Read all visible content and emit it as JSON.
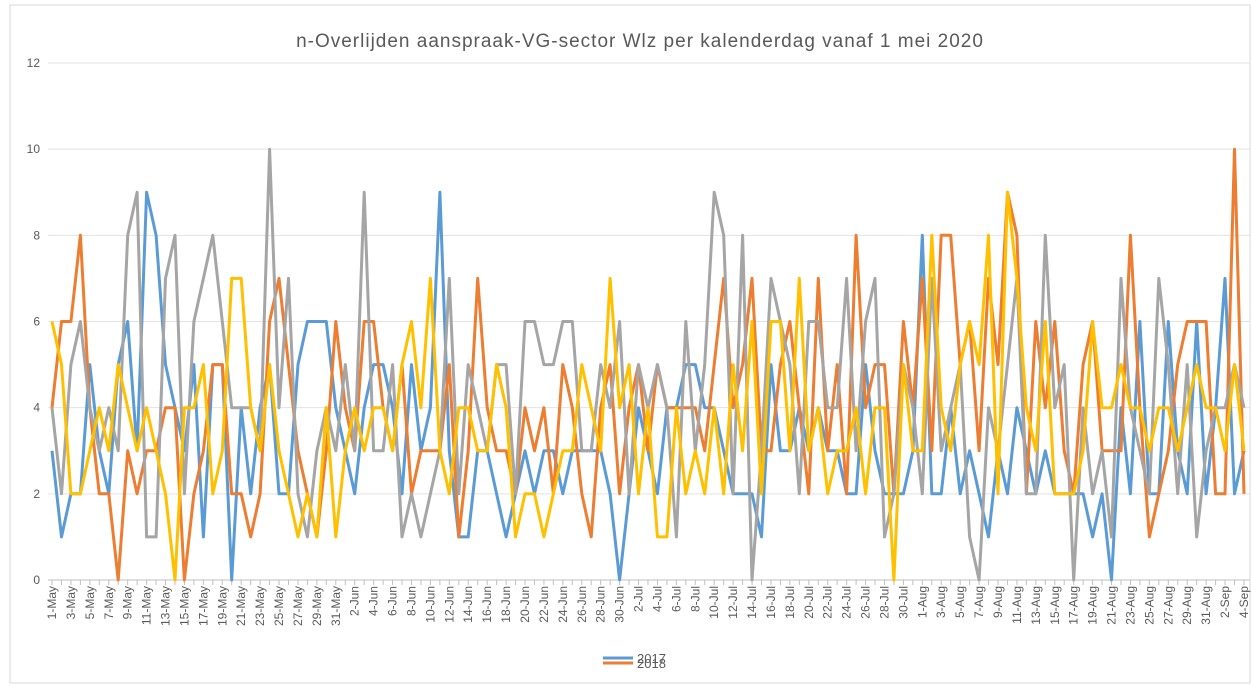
{
  "chart_data": {
    "type": "line",
    "title": "n-Overlijden aanspraak-VG-sector Wlz per kalenderdag vanaf 1 mei 2020",
    "categories": [
      "1-May",
      null,
      "3-May",
      null,
      "5-May",
      null,
      "7-May",
      null,
      "9-May",
      null,
      "11-May",
      null,
      "13-May",
      null,
      "15-May",
      null,
      "17-May",
      null,
      "19-May",
      null,
      "21-May",
      null,
      "23-May",
      null,
      "25-May",
      null,
      "27-May",
      null,
      "29-May",
      null,
      "31-May",
      null,
      "2-Jun",
      null,
      "4-Jun",
      null,
      "6-Jun",
      null,
      "8-Jun",
      null,
      "10-Jun",
      null,
      "12-Jun",
      null,
      "14-Jun",
      null,
      "16-Jun",
      null,
      "18-Jun",
      null,
      "20-Jun",
      null,
      "22-Jun",
      null,
      "24-Jun",
      null,
      "26-Jun",
      null,
      "28-Jun",
      null,
      "30-Jun",
      null,
      "2-Jul",
      null,
      "4-Jul",
      null,
      "6-Jul",
      null,
      "8-Jul",
      null,
      "10-Jul",
      null,
      "12-Jul",
      null,
      "14-Jul",
      null,
      "16-Jul",
      null,
      "18-Jul",
      null,
      "20-Jul",
      null,
      "22-Jul",
      null,
      "24-Jul",
      null,
      "26-Jul",
      null,
      "28-Jul",
      null,
      "30-Jul",
      null,
      "1-Aug",
      null,
      "3-Aug",
      null,
      "5-Aug",
      null,
      "7-Aug",
      null,
      "9-Aug",
      null,
      "11-Aug",
      null,
      "13-Aug",
      null,
      "15-Aug",
      null,
      "17-Aug",
      null,
      "19-Aug",
      null,
      "21-Aug",
      null,
      "23-Aug",
      null,
      "25-Aug",
      null,
      "27-Aug",
      null,
      "29-Aug",
      null,
      "31-Aug",
      null,
      "2-Sep",
      null,
      "4-Sep"
    ],
    "series": [
      {
        "name": "2017",
        "color": "#5b9bd5",
        "values": [
          3,
          1,
          2,
          2,
          5,
          3,
          2,
          5,
          6,
          3,
          9,
          8,
          5,
          4,
          3,
          5,
          1,
          5,
          5,
          0,
          4,
          2,
          4,
          5,
          2,
          2,
          5,
          6,
          6,
          6,
          4,
          3,
          2,
          4,
          5,
          5,
          4,
          2,
          5,
          3,
          4,
          9,
          3,
          1,
          1,
          3,
          3,
          2,
          1,
          2,
          3,
          2,
          3,
          3,
          2,
          3,
          3,
          3,
          3,
          2,
          0,
          2,
          4,
          3,
          2,
          4,
          4,
          5,
          5,
          4,
          4,
          3,
          2,
          2,
          2,
          1,
          5,
          3,
          3,
          4,
          3,
          4,
          3,
          3,
          2,
          2,
          5,
          3,
          2,
          2,
          2,
          3,
          8,
          2,
          2,
          4,
          2,
          3,
          2,
          1,
          3,
          2,
          4,
          3,
          2,
          3,
          2,
          2,
          2,
          2,
          1,
          2,
          0,
          4,
          2,
          6,
          2,
          2,
          6,
          3,
          2,
          6,
          2,
          4,
          7,
          2,
          3
        ]
      },
      {
        "name": "2018",
        "color": "#ed7d31",
        "values": [
          4,
          6,
          6,
          8,
          4,
          2,
          2,
          0,
          3,
          2,
          3,
          3,
          4,
          4,
          0,
          2,
          3,
          5,
          5,
          2,
          2,
          1,
          2,
          6,
          7,
          5,
          3,
          2,
          1,
          3,
          6,
          4,
          3,
          6,
          6,
          4,
          3,
          5,
          2,
          3,
          3,
          3,
          5,
          1,
          3,
          7,
          4,
          3,
          3,
          2,
          4,
          3,
          4,
          2,
          5,
          4,
          2,
          1,
          4,
          5,
          2,
          4,
          5,
          3,
          5,
          4,
          4,
          4,
          4,
          3,
          5,
          7,
          4,
          5,
          7,
          3,
          3,
          5,
          6,
          4,
          2,
          7,
          3,
          5,
          2,
          8,
          4,
          5,
          5,
          2,
          6,
          4,
          7,
          3,
          8,
          8,
          5,
          6,
          3,
          7,
          5,
          9,
          8,
          2,
          6,
          4,
          6,
          3,
          2,
          5,
          6,
          3,
          3,
          3,
          8,
          4,
          1,
          2,
          3,
          5,
          6,
          6,
          6,
          2,
          2,
          10,
          2
        ]
      },
      {
        "color": "#a5a5a5",
        "values": [
          4,
          2,
          5,
          6,
          4,
          3,
          4,
          3,
          8,
          9,
          1,
          1,
          7,
          8,
          2,
          6,
          7,
          8,
          6,
          4,
          4,
          4,
          3,
          10,
          4,
          7,
          2,
          1,
          3,
          4,
          3,
          5,
          3,
          9,
          3,
          3,
          5,
          1,
          2,
          1,
          2,
          3,
          7,
          2,
          5,
          4,
          3,
          5,
          5,
          2,
          6,
          6,
          5,
          5,
          6,
          6,
          3,
          3,
          5,
          4,
          6,
          2,
          5,
          4,
          5,
          4,
          1,
          6,
          3,
          5,
          9,
          8,
          2,
          8,
          0,
          3,
          7,
          6,
          5,
          2,
          6,
          6,
          4,
          4,
          7,
          3,
          6,
          7,
          1,
          2,
          5,
          4,
          2,
          7,
          3,
          4,
          5,
          1,
          0,
          4,
          3,
          5,
          7,
          2,
          2,
          8,
          4,
          5,
          0,
          4,
          2,
          3,
          1,
          7,
          4,
          3,
          2,
          7,
          5,
          2,
          5,
          1,
          3,
          4,
          4,
          5,
          4
        ]
      },
      {
        "color": "#ffc000",
        "values": [
          6,
          5,
          2,
          2,
          3,
          4,
          3,
          5,
          4,
          3,
          4,
          3,
          2,
          0,
          4,
          4,
          5,
          2,
          3,
          7,
          7,
          4,
          3,
          5,
          3,
          2,
          1,
          2,
          1,
          4,
          1,
          3,
          4,
          3,
          4,
          4,
          3,
          5,
          6,
          4,
          7,
          3,
          2,
          4,
          4,
          3,
          3,
          5,
          4,
          1,
          2,
          2,
          1,
          2,
          3,
          3,
          5,
          4,
          3,
          7,
          4,
          5,
          2,
          4,
          1,
          1,
          4,
          2,
          3,
          2,
          4,
          2,
          5,
          3,
          6,
          2,
          6,
          6,
          3,
          7,
          3,
          4,
          2,
          3,
          3,
          4,
          2,
          4,
          4,
          0,
          5,
          3,
          3,
          8,
          4,
          3,
          5,
          6,
          5,
          8,
          2,
          9,
          7,
          4,
          3,
          6,
          2,
          2,
          2,
          3,
          6,
          4,
          4,
          5,
          4,
          4,
          3,
          4,
          4,
          3,
          4,
          5,
          4,
          4,
          3,
          5,
          3
        ]
      }
    ],
    "ylim": [
      0,
      12
    ],
    "yticks": [
      0,
      2,
      4,
      6,
      8,
      10,
      12
    ],
    "grid": true
  }
}
